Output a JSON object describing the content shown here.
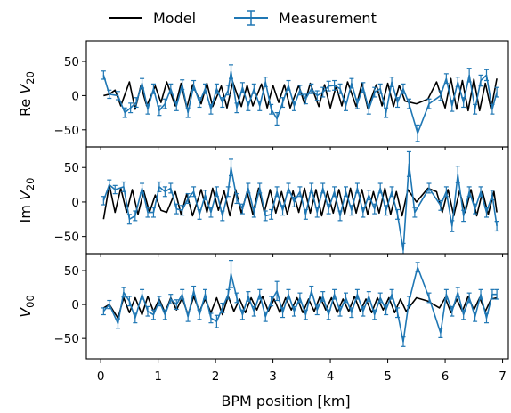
{
  "legend": {
    "model_label": "Model",
    "measurement_label": "Measurement"
  },
  "colors": {
    "model": "#000000",
    "measurement": "#1f77b4"
  },
  "xaxis": {
    "label": "BPM position [km]",
    "ticks": [
      "0",
      "1",
      "2",
      "3",
      "4",
      "5",
      "6",
      "7"
    ]
  },
  "chart_data": [
    {
      "type": "line",
      "panel": "top",
      "ylabel_main": "Re ",
      "ylabel_italic": "V",
      "ylabel_sub": "20",
      "xlim": [
        -0.25,
        7.1
      ],
      "ylim": [
        -75,
        80
      ],
      "yticks": [
        50,
        0,
        -50
      ],
      "grid": false,
      "series": [
        {
          "name": "Model",
          "x": [
            0.05,
            0.15,
            0.25,
            0.35,
            0.5,
            0.6,
            0.7,
            0.8,
            0.95,
            1.05,
            1.15,
            1.3,
            1.4,
            1.5,
            1.6,
            1.75,
            1.85,
            1.95,
            2.1,
            2.2,
            2.3,
            2.45,
            2.55,
            2.65,
            2.8,
            2.9,
            3.0,
            3.1,
            3.2,
            3.3,
            3.45,
            3.55,
            3.65,
            3.8,
            3.9,
            4.0,
            4.1,
            4.2,
            4.3,
            4.45,
            4.55,
            4.65,
            4.8,
            4.9,
            5.0,
            5.1,
            5.2,
            5.3,
            5.5,
            5.7,
            5.85,
            6.0,
            6.1,
            6.2,
            6.3,
            6.4,
            6.5,
            6.6,
            6.7,
            6.8,
            6.9
          ],
          "y": [
            0,
            2,
            8,
            -15,
            20,
            -20,
            15,
            -15,
            14,
            -10,
            20,
            -15,
            18,
            -18,
            16,
            -12,
            18,
            -16,
            14,
            -18,
            20,
            -16,
            15,
            -15,
            17,
            -18,
            15,
            -10,
            16,
            -18,
            15,
            -12,
            18,
            -16,
            16,
            -18,
            14,
            -15,
            20,
            -16,
            18,
            -18,
            16,
            -15,
            18,
            -16,
            15,
            -8,
            -12,
            -5,
            20,
            -18,
            25,
            -20,
            22,
            -22,
            24,
            -22,
            18,
            -20,
            25
          ]
        },
        {
          "name": "Measurement",
          "x": [
            0.05,
            0.15,
            0.3,
            0.42,
            0.52,
            0.62,
            0.72,
            0.82,
            0.92,
            1.02,
            1.12,
            1.22,
            1.32,
            1.42,
            1.52,
            1.62,
            1.72,
            1.82,
            1.92,
            2.02,
            2.12,
            2.22,
            2.27,
            2.37,
            2.47,
            2.57,
            2.67,
            2.77,
            2.87,
            2.97,
            3.07,
            3.17,
            3.27,
            3.37,
            3.47,
            3.57,
            3.67,
            3.77,
            3.87,
            3.97,
            4.07,
            4.17,
            4.27,
            4.37,
            4.47,
            4.57,
            4.67,
            4.77,
            4.87,
            4.97,
            5.07,
            5.17,
            5.27,
            5.37,
            5.52,
            5.72,
            5.92,
            6.02,
            6.12,
            6.22,
            6.32,
            6.42,
            6.52,
            6.62,
            6.72,
            6.82,
            6.9
          ],
          "y": [
            30,
            2,
            0,
            -25,
            -18,
            -10,
            18,
            -20,
            10,
            -22,
            -12,
            10,
            -15,
            16,
            -25,
            15,
            -10,
            10,
            -20,
            10,
            -10,
            8,
            35,
            -18,
            12,
            -15,
            10,
            -15,
            20,
            -20,
            -34,
            -10,
            15,
            -15,
            8,
            -5,
            10,
            0,
            5,
            14,
            15,
            10,
            -15,
            18,
            -12,
            12,
            -20,
            5,
            10,
            -25,
            20,
            -10,
            10,
            -12,
            -55,
            -12,
            0,
            25,
            -15,
            20,
            -10,
            30,
            -20,
            22,
            30,
            -20,
            5
          ],
          "error": [
            6,
            6,
            6,
            7,
            7,
            7,
            7,
            7,
            7,
            7,
            7,
            7,
            7,
            7,
            7,
            7,
            7,
            7,
            7,
            7,
            7,
            7,
            10,
            7,
            7,
            7,
            7,
            7,
            7,
            7,
            9,
            7,
            7,
            7,
            7,
            7,
            7,
            7,
            7,
            7,
            7,
            7,
            7,
            7,
            7,
            7,
            7,
            7,
            7,
            7,
            7,
            7,
            7,
            7,
            12,
            7,
            7,
            7,
            8,
            7,
            7,
            10,
            7,
            8,
            8,
            7,
            7
          ]
        }
      ]
    },
    {
      "type": "line",
      "panel": "middle",
      "ylabel_main": "Im ",
      "ylabel_italic": "V",
      "ylabel_sub": "20",
      "xlim": [
        -0.25,
        7.1
      ],
      "ylim": [
        -75,
        80
      ],
      "yticks": [
        50,
        0,
        -50
      ],
      "grid": false,
      "series": [
        {
          "name": "Model",
          "x": [
            0.05,
            0.15,
            0.25,
            0.35,
            0.45,
            0.55,
            0.65,
            0.75,
            0.85,
            0.95,
            1.05,
            1.15,
            1.3,
            1.4,
            1.5,
            1.6,
            1.75,
            1.85,
            1.95,
            2.05,
            2.15,
            2.25,
            2.35,
            2.45,
            2.55,
            2.65,
            2.75,
            2.85,
            2.95,
            3.05,
            3.15,
            3.25,
            3.35,
            3.45,
            3.55,
            3.65,
            3.75,
            3.85,
            3.95,
            4.05,
            4.15,
            4.25,
            4.35,
            4.45,
            4.55,
            4.65,
            4.75,
            4.85,
            4.95,
            5.05,
            5.15,
            5.25,
            5.35,
            5.5,
            5.7,
            5.85,
            5.95,
            6.05,
            6.15,
            6.25,
            6.35,
            6.45,
            6.55,
            6.65,
            6.75,
            6.85,
            6.9
          ],
          "y": [
            -25,
            25,
            -15,
            20,
            -15,
            18,
            -18,
            16,
            -15,
            10,
            -12,
            -15,
            15,
            -18,
            12,
            -20,
            18,
            -15,
            20,
            -12,
            16,
            -20,
            18,
            -16,
            15,
            -18,
            20,
            -15,
            18,
            -16,
            15,
            -18,
            16,
            -15,
            20,
            -16,
            18,
            -20,
            15,
            -16,
            18,
            -18,
            20,
            -16,
            18,
            -18,
            15,
            -16,
            20,
            -18,
            15,
            -20,
            18,
            0,
            20,
            15,
            -15,
            18,
            -20,
            16,
            -15,
            18,
            -20,
            15,
            -18,
            15,
            -15
          ]
        },
        {
          "name": "Measurement",
          "x": [
            0.05,
            0.15,
            0.25,
            0.4,
            0.5,
            0.6,
            0.72,
            0.82,
            0.92,
            1.02,
            1.12,
            1.22,
            1.32,
            1.42,
            1.52,
            1.62,
            1.72,
            1.82,
            1.92,
            2.02,
            2.12,
            2.22,
            2.27,
            2.37,
            2.47,
            2.57,
            2.67,
            2.77,
            2.87,
            2.97,
            3.07,
            3.17,
            3.27,
            3.37,
            3.47,
            3.57,
            3.67,
            3.77,
            3.87,
            3.97,
            4.07,
            4.17,
            4.27,
            4.37,
            4.47,
            4.57,
            4.67,
            4.77,
            4.87,
            4.97,
            5.07,
            5.17,
            5.27,
            5.37,
            5.47,
            5.72,
            5.92,
            6.02,
            6.12,
            6.22,
            6.32,
            6.42,
            6.52,
            6.62,
            6.72,
            6.82,
            6.9
          ],
          "y": [
            2,
            25,
            18,
            22,
            -25,
            -20,
            20,
            -15,
            -15,
            22,
            15,
            20,
            -10,
            -12,
            5,
            15,
            -18,
            10,
            -15,
            15,
            -20,
            15,
            50,
            5,
            -10,
            20,
            -15,
            20,
            -20,
            -18,
            15,
            -12,
            20,
            0,
            15,
            -18,
            20,
            -15,
            20,
            -10,
            15,
            -20,
            15,
            -12,
            20,
            -15,
            10,
            -10,
            20,
            -12,
            15,
            -18,
            -70,
            55,
            -15,
            20,
            -5,
            15,
            -35,
            40,
            -20,
            15,
            -10,
            15,
            -15,
            10,
            -35
          ],
          "error": [
            6,
            7,
            6,
            7,
            7,
            7,
            7,
            7,
            7,
            7,
            7,
            7,
            7,
            7,
            7,
            7,
            7,
            7,
            7,
            7,
            7,
            7,
            12,
            7,
            7,
            7,
            7,
            7,
            7,
            7,
            7,
            7,
            7,
            7,
            7,
            7,
            7,
            7,
            7,
            7,
            7,
            7,
            7,
            7,
            7,
            7,
            7,
            7,
            7,
            7,
            7,
            7,
            10,
            18,
            7,
            7,
            7,
            7,
            8,
            12,
            8,
            7,
            7,
            7,
            7,
            7,
            7
          ]
        }
      ]
    },
    {
      "type": "line",
      "panel": "bottom",
      "ylabel_main": "",
      "ylabel_italic": "V",
      "ylabel_sub": "00",
      "xlim": [
        -0.25,
        7.1
      ],
      "ylim": [
        -80,
        75
      ],
      "yticks": [
        50,
        0,
        -50
      ],
      "grid": false,
      "series": [
        {
          "name": "Model",
          "x": [
            0.05,
            0.15,
            0.3,
            0.4,
            0.5,
            0.6,
            0.72,
            0.82,
            0.92,
            1.02,
            1.12,
            1.22,
            1.32,
            1.42,
            1.52,
            1.62,
            1.72,
            1.82,
            1.92,
            2.02,
            2.12,
            2.22,
            2.32,
            2.42,
            2.52,
            2.62,
            2.72,
            2.82,
            2.92,
            3.02,
            3.12,
            3.22,
            3.32,
            3.42,
            3.52,
            3.62,
            3.72,
            3.82,
            3.92,
            4.02,
            4.12,
            4.22,
            4.32,
            4.42,
            4.52,
            4.62,
            4.72,
            4.82,
            4.92,
            5.02,
            5.12,
            5.22,
            5.32,
            5.5,
            5.7,
            5.9,
            6.0,
            6.1,
            6.2,
            6.3,
            6.4,
            6.5,
            6.6,
            6.7,
            6.8,
            6.9
          ],
          "y": [
            -5,
            0,
            -20,
            10,
            -12,
            10,
            -15,
            12,
            -10,
            8,
            -12,
            10,
            -8,
            10,
            -15,
            12,
            -10,
            8,
            -12,
            10,
            -15,
            12,
            -10,
            8,
            -12,
            10,
            -8,
            12,
            -10,
            8,
            -12,
            10,
            -8,
            10,
            -12,
            8,
            -10,
            12,
            -8,
            10,
            -12,
            8,
            -10,
            12,
            -10,
            8,
            -12,
            10,
            -8,
            10,
            -12,
            8,
            -10,
            10,
            5,
            -5,
            10,
            -12,
            8,
            -10,
            12,
            -8,
            10,
            -10,
            8,
            10
          ]
        },
        {
          "name": "Measurement",
          "x": [
            0.05,
            0.15,
            0.3,
            0.4,
            0.5,
            0.6,
            0.72,
            0.82,
            0.92,
            1.02,
            1.12,
            1.22,
            1.32,
            1.42,
            1.52,
            1.62,
            1.72,
            1.82,
            1.92,
            2.02,
            2.12,
            2.22,
            2.27,
            2.37,
            2.47,
            2.57,
            2.67,
            2.77,
            2.87,
            2.97,
            3.07,
            3.17,
            3.27,
            3.37,
            3.47,
            3.57,
            3.67,
            3.77,
            3.87,
            3.97,
            4.07,
            4.17,
            4.27,
            4.37,
            4.47,
            4.57,
            4.67,
            4.77,
            4.87,
            4.97,
            5.07,
            5.17,
            5.27,
            5.37,
            5.52,
            5.72,
            5.92,
            6.02,
            6.12,
            6.22,
            6.32,
            6.42,
            6.52,
            6.62,
            6.72,
            6.82,
            6.9
          ],
          "y": [
            -10,
            0,
            -28,
            18,
            5,
            -20,
            15,
            -10,
            -15,
            5,
            -15,
            8,
            0,
            15,
            -18,
            20,
            -15,
            15,
            -20,
            -25,
            -5,
            15,
            45,
            10,
            -15,
            12,
            -10,
            15,
            -18,
            5,
            20,
            -12,
            15,
            -10,
            10,
            -15,
            20,
            -8,
            12,
            -15,
            15,
            -10,
            10,
            -12,
            15,
            -10,
            12,
            -15,
            10,
            -8,
            15,
            -12,
            -55,
            5,
            55,
            10,
            -42,
            15,
            -10,
            18,
            -15,
            10,
            -18,
            15,
            -20,
            15,
            15
          ],
          "error": [
            5,
            6,
            7,
            7,
            7,
            7,
            7,
            7,
            7,
            7,
            7,
            7,
            7,
            7,
            7,
            7,
            7,
            7,
            7,
            9,
            7,
            7,
            20,
            7,
            7,
            7,
            7,
            7,
            7,
            7,
            14,
            7,
            7,
            7,
            7,
            7,
            7,
            7,
            7,
            7,
            7,
            7,
            7,
            7,
            7,
            7,
            7,
            7,
            7,
            7,
            7,
            7,
            7,
            7,
            7,
            7,
            7,
            7,
            7,
            7,
            7,
            7,
            7,
            7,
            7,
            7,
            7
          ]
        }
      ]
    }
  ]
}
